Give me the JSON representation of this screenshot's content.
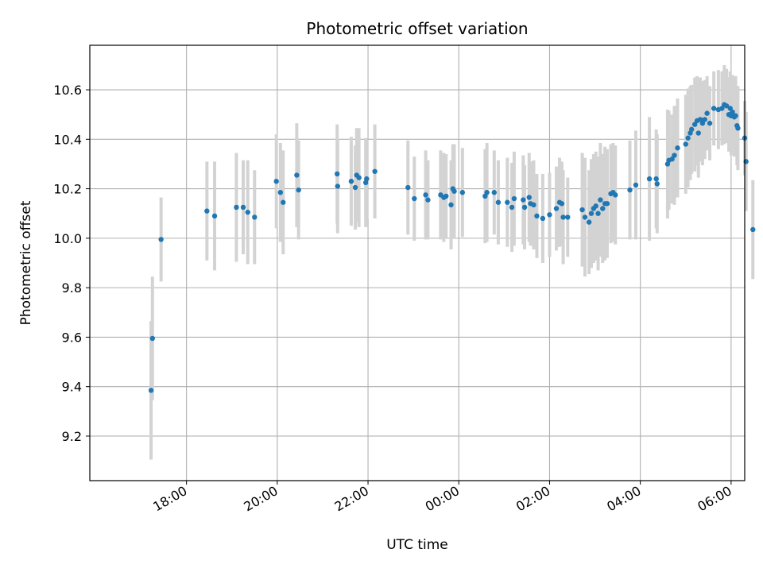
{
  "chart_data": {
    "type": "scatter",
    "title": "Photometric offset variation",
    "xlabel": "UTC time",
    "ylabel": "Photometric offset",
    "x_tick_labels": [
      "18:00",
      "20:00",
      "22:00",
      "00:00",
      "02:00",
      "04:00",
      "06:00"
    ],
    "x_tick_hours": [
      18,
      20,
      22,
      24,
      26,
      28,
      30
    ],
    "y_ticks": [
      9.2,
      9.4,
      9.6,
      9.8,
      10.0,
      10.2,
      10.4,
      10.6
    ],
    "y_tick_labels": [
      "9.2",
      "9.4",
      "9.6",
      "9.8",
      "10.0",
      "10.2",
      "10.4",
      "10.6"
    ],
    "xlim_hours": [
      15.87,
      30.3
    ],
    "ylim": [
      9.02,
      10.78
    ],
    "grid": true,
    "colors": {
      "point": "#1f77b4",
      "errorbar": "#d3d3d3",
      "grid": "#b0b0b0"
    },
    "x_unit_note": "hours after 00:00 of the first day; values >24 are the next day",
    "series": [
      {
        "points": [
          [
            17.22,
            9.385,
            0.28
          ],
          [
            17.25,
            9.595,
            0.25
          ],
          [
            17.44,
            9.995,
            0.17
          ],
          [
            18.45,
            10.11,
            0.2
          ],
          [
            18.62,
            10.09,
            0.22
          ],
          [
            19.1,
            10.125,
            0.22
          ],
          [
            19.25,
            10.125,
            0.19
          ],
          [
            19.35,
            10.105,
            0.21
          ],
          [
            19.5,
            10.085,
            0.19
          ],
          [
            19.98,
            10.23,
            0.19
          ],
          [
            20.07,
            10.185,
            0.2
          ],
          [
            20.13,
            10.145,
            0.21
          ],
          [
            20.43,
            10.255,
            0.21
          ],
          [
            20.47,
            10.195,
            0.2
          ],
          [
            21.32,
            10.26,
            0.2
          ],
          [
            21.33,
            10.21,
            0.19
          ],
          [
            21.63,
            10.23,
            0.18
          ],
          [
            21.72,
            10.205,
            0.17
          ],
          [
            21.75,
            10.255,
            0.19
          ],
          [
            21.8,
            10.245,
            0.2
          ],
          [
            21.95,
            10.225,
            0.18
          ],
          [
            21.97,
            10.24,
            0.16
          ],
          [
            22.15,
            10.27,
            0.19
          ],
          [
            22.88,
            10.205,
            0.19
          ],
          [
            23.02,
            10.16,
            0.17
          ],
          [
            23.27,
            10.175,
            0.18
          ],
          [
            23.32,
            10.155,
            0.16
          ],
          [
            23.6,
            10.175,
            0.18
          ],
          [
            23.67,
            10.165,
            0.18
          ],
          [
            23.72,
            10.17,
            0.17
          ],
          [
            23.83,
            10.135,
            0.18
          ],
          [
            23.87,
            10.2,
            0.18
          ],
          [
            23.9,
            10.19,
            0.19
          ],
          [
            24.08,
            10.185,
            0.18
          ],
          [
            24.58,
            10.17,
            0.19
          ],
          [
            24.62,
            10.185,
            0.2
          ],
          [
            24.78,
            10.185,
            0.17
          ],
          [
            24.87,
            10.145,
            0.17
          ],
          [
            25.07,
            10.145,
            0.18
          ],
          [
            25.17,
            10.125,
            0.18
          ],
          [
            25.22,
            10.16,
            0.19
          ],
          [
            25.42,
            10.155,
            0.18
          ],
          [
            25.45,
            10.125,
            0.17
          ],
          [
            25.55,
            10.165,
            0.18
          ],
          [
            25.58,
            10.14,
            0.17
          ],
          [
            25.65,
            10.135,
            0.18
          ],
          [
            25.72,
            10.09,
            0.17
          ],
          [
            25.85,
            10.08,
            0.18
          ],
          [
            26.0,
            10.095,
            0.17
          ],
          [
            26.15,
            10.12,
            0.17
          ],
          [
            26.22,
            10.145,
            0.18
          ],
          [
            26.27,
            10.14,
            0.17
          ],
          [
            26.3,
            10.085,
            0.19
          ],
          [
            26.4,
            10.085,
            0.16
          ],
          [
            26.72,
            10.115,
            0.23
          ],
          [
            26.78,
            10.085,
            0.24
          ],
          [
            26.87,
            10.065,
            0.21
          ],
          [
            26.92,
            10.1,
            0.22
          ],
          [
            26.97,
            10.12,
            0.22
          ],
          [
            27.02,
            10.13,
            0.22
          ],
          [
            27.07,
            10.1,
            0.23
          ],
          [
            27.12,
            10.155,
            0.23
          ],
          [
            27.17,
            10.12,
            0.22
          ],
          [
            27.22,
            10.14,
            0.23
          ],
          [
            27.27,
            10.14,
            0.22
          ],
          [
            27.35,
            10.18,
            0.2
          ],
          [
            27.4,
            10.185,
            0.2
          ],
          [
            27.45,
            10.175,
            0.2
          ],
          [
            27.77,
            10.195,
            0.2
          ],
          [
            27.9,
            10.215,
            0.22
          ],
          [
            28.2,
            10.24,
            0.25
          ],
          [
            28.35,
            10.24,
            0.2
          ],
          [
            28.37,
            10.22,
            0.2
          ],
          [
            28.6,
            10.3,
            0.22
          ],
          [
            28.63,
            10.315,
            0.2
          ],
          [
            28.7,
            10.32,
            0.18
          ],
          [
            28.75,
            10.335,
            0.2
          ],
          [
            28.82,
            10.365,
            0.2
          ],
          [
            29.0,
            10.38,
            0.2
          ],
          [
            29.05,
            10.405,
            0.2
          ],
          [
            29.1,
            10.425,
            0.19
          ],
          [
            29.13,
            10.44,
            0.18
          ],
          [
            29.2,
            10.46,
            0.19
          ],
          [
            29.25,
            10.475,
            0.18
          ],
          [
            29.28,
            10.425,
            0.18
          ],
          [
            29.32,
            10.48,
            0.17
          ],
          [
            29.37,
            10.465,
            0.17
          ],
          [
            29.42,
            10.48,
            0.16
          ],
          [
            29.47,
            10.505,
            0.15
          ],
          [
            29.53,
            10.465,
            0.15
          ],
          [
            29.62,
            10.525,
            0.15
          ],
          [
            29.72,
            10.52,
            0.16
          ],
          [
            29.8,
            10.525,
            0.15
          ],
          [
            29.85,
            10.54,
            0.16
          ],
          [
            29.9,
            10.535,
            0.15
          ],
          [
            29.95,
            10.5,
            0.15
          ],
          [
            29.98,
            10.525,
            0.15
          ],
          [
            30.0,
            10.495,
            0.16
          ],
          [
            30.03,
            10.51,
            0.15
          ],
          [
            30.07,
            10.49,
            0.16
          ],
          [
            30.1,
            10.495,
            0.16
          ],
          [
            30.13,
            10.455,
            0.16
          ],
          [
            30.15,
            10.445,
            0.17
          ],
          [
            30.3,
            10.405,
            0.15
          ],
          [
            30.33,
            10.31,
            0.2
          ],
          [
            30.48,
            10.035,
            0.2
          ]
        ]
      }
    ]
  }
}
